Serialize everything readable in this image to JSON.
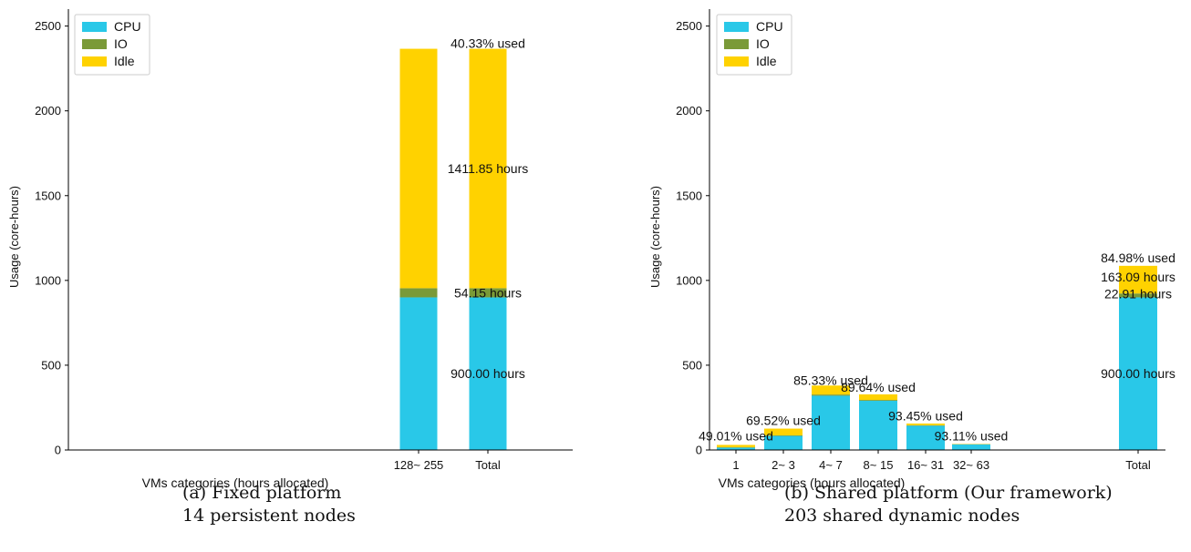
{
  "chart_data": [
    {
      "id": "a",
      "type": "bar",
      "stacked": true,
      "caption": "(a) Fixed platform",
      "subcaption": "14 persistent nodes",
      "xlabel": "VMs categories (hours allocated)",
      "ylabel": "Usage (core-hours)",
      "ylim": [
        0,
        2600
      ],
      "yticks": [
        0,
        500,
        1000,
        1500,
        2000,
        2500
      ],
      "legend_position": "top-left",
      "categories": [
        "128~ 255",
        "Total"
      ],
      "series": [
        {
          "name": "CPU",
          "color": "#29c8e8",
          "values": [
            900,
            900
          ]
        },
        {
          "name": "IO",
          "color": "#7a9a38",
          "values": [
            54.15,
            54.15
          ]
        },
        {
          "name": "Idle",
          "color": "#ffd200",
          "values": [
            1411.85,
            1411.85
          ]
        }
      ],
      "annotations": [
        {
          "text": "40.33% used",
          "category": "Total",
          "y": 2398
        },
        {
          "text": "1411.85 hours",
          "category": "Total",
          "y": 1660
        },
        {
          "text": "54.15 hours",
          "category": "Total",
          "y": 927
        },
        {
          "text": "900.00 hours",
          "category": "Total",
          "y": 450
        }
      ]
    },
    {
      "id": "b",
      "type": "bar",
      "stacked": true,
      "caption": "(b) Shared platform (Our framework)",
      "subcaption": "203 shared dynamic nodes",
      "xlabel": "VMs categories (hours allocated)",
      "ylabel": "Usage (core-hours)",
      "ylim": [
        0,
        2600
      ],
      "yticks": [
        0,
        500,
        1000,
        1500,
        2000,
        2500
      ],
      "legend_position": "top-left",
      "categories": [
        "1",
        "2~ 3",
        "4~ 7",
        "8~ 15",
        "16~ 31",
        "32~ 63",
        "Total"
      ],
      "series": [
        {
          "name": "CPU",
          "color": "#29c8e8",
          "values": [
            14,
            83,
            320,
            290,
            143,
            33,
            900
          ]
        },
        {
          "name": "IO",
          "color": "#7a9a38",
          "values": [
            2,
            3,
            7,
            5,
            3,
            1,
            22.91
          ]
        },
        {
          "name": "Idle",
          "color": "#ffd200",
          "values": [
            14,
            40,
            53,
            33,
            10,
            2,
            163.09
          ]
        }
      ],
      "annotations": [
        {
          "text": "49.01% used",
          "category": "1",
          "y": 83
        },
        {
          "text": "69.52% used",
          "category": "2~ 3",
          "y": 175
        },
        {
          "text": "85.33% used",
          "category": "4~ 7",
          "y": 412
        },
        {
          "text": "89.64% used",
          "category": "8~ 15",
          "y": 370
        },
        {
          "text": "93.45% used",
          "category": "16~ 31",
          "y": 202
        },
        {
          "text": "93.11% used",
          "category": "32~ 63",
          "y": 83
        },
        {
          "text": "84.98% used",
          "category": "Total",
          "y": 1133
        },
        {
          "text": "163.09 hours",
          "category": "Total",
          "y": 1020
        },
        {
          "text": "22.91 hours",
          "category": "Total",
          "y": 920
        },
        {
          "text": "900.00 hours",
          "category": "Total",
          "y": 450
        }
      ]
    }
  ]
}
